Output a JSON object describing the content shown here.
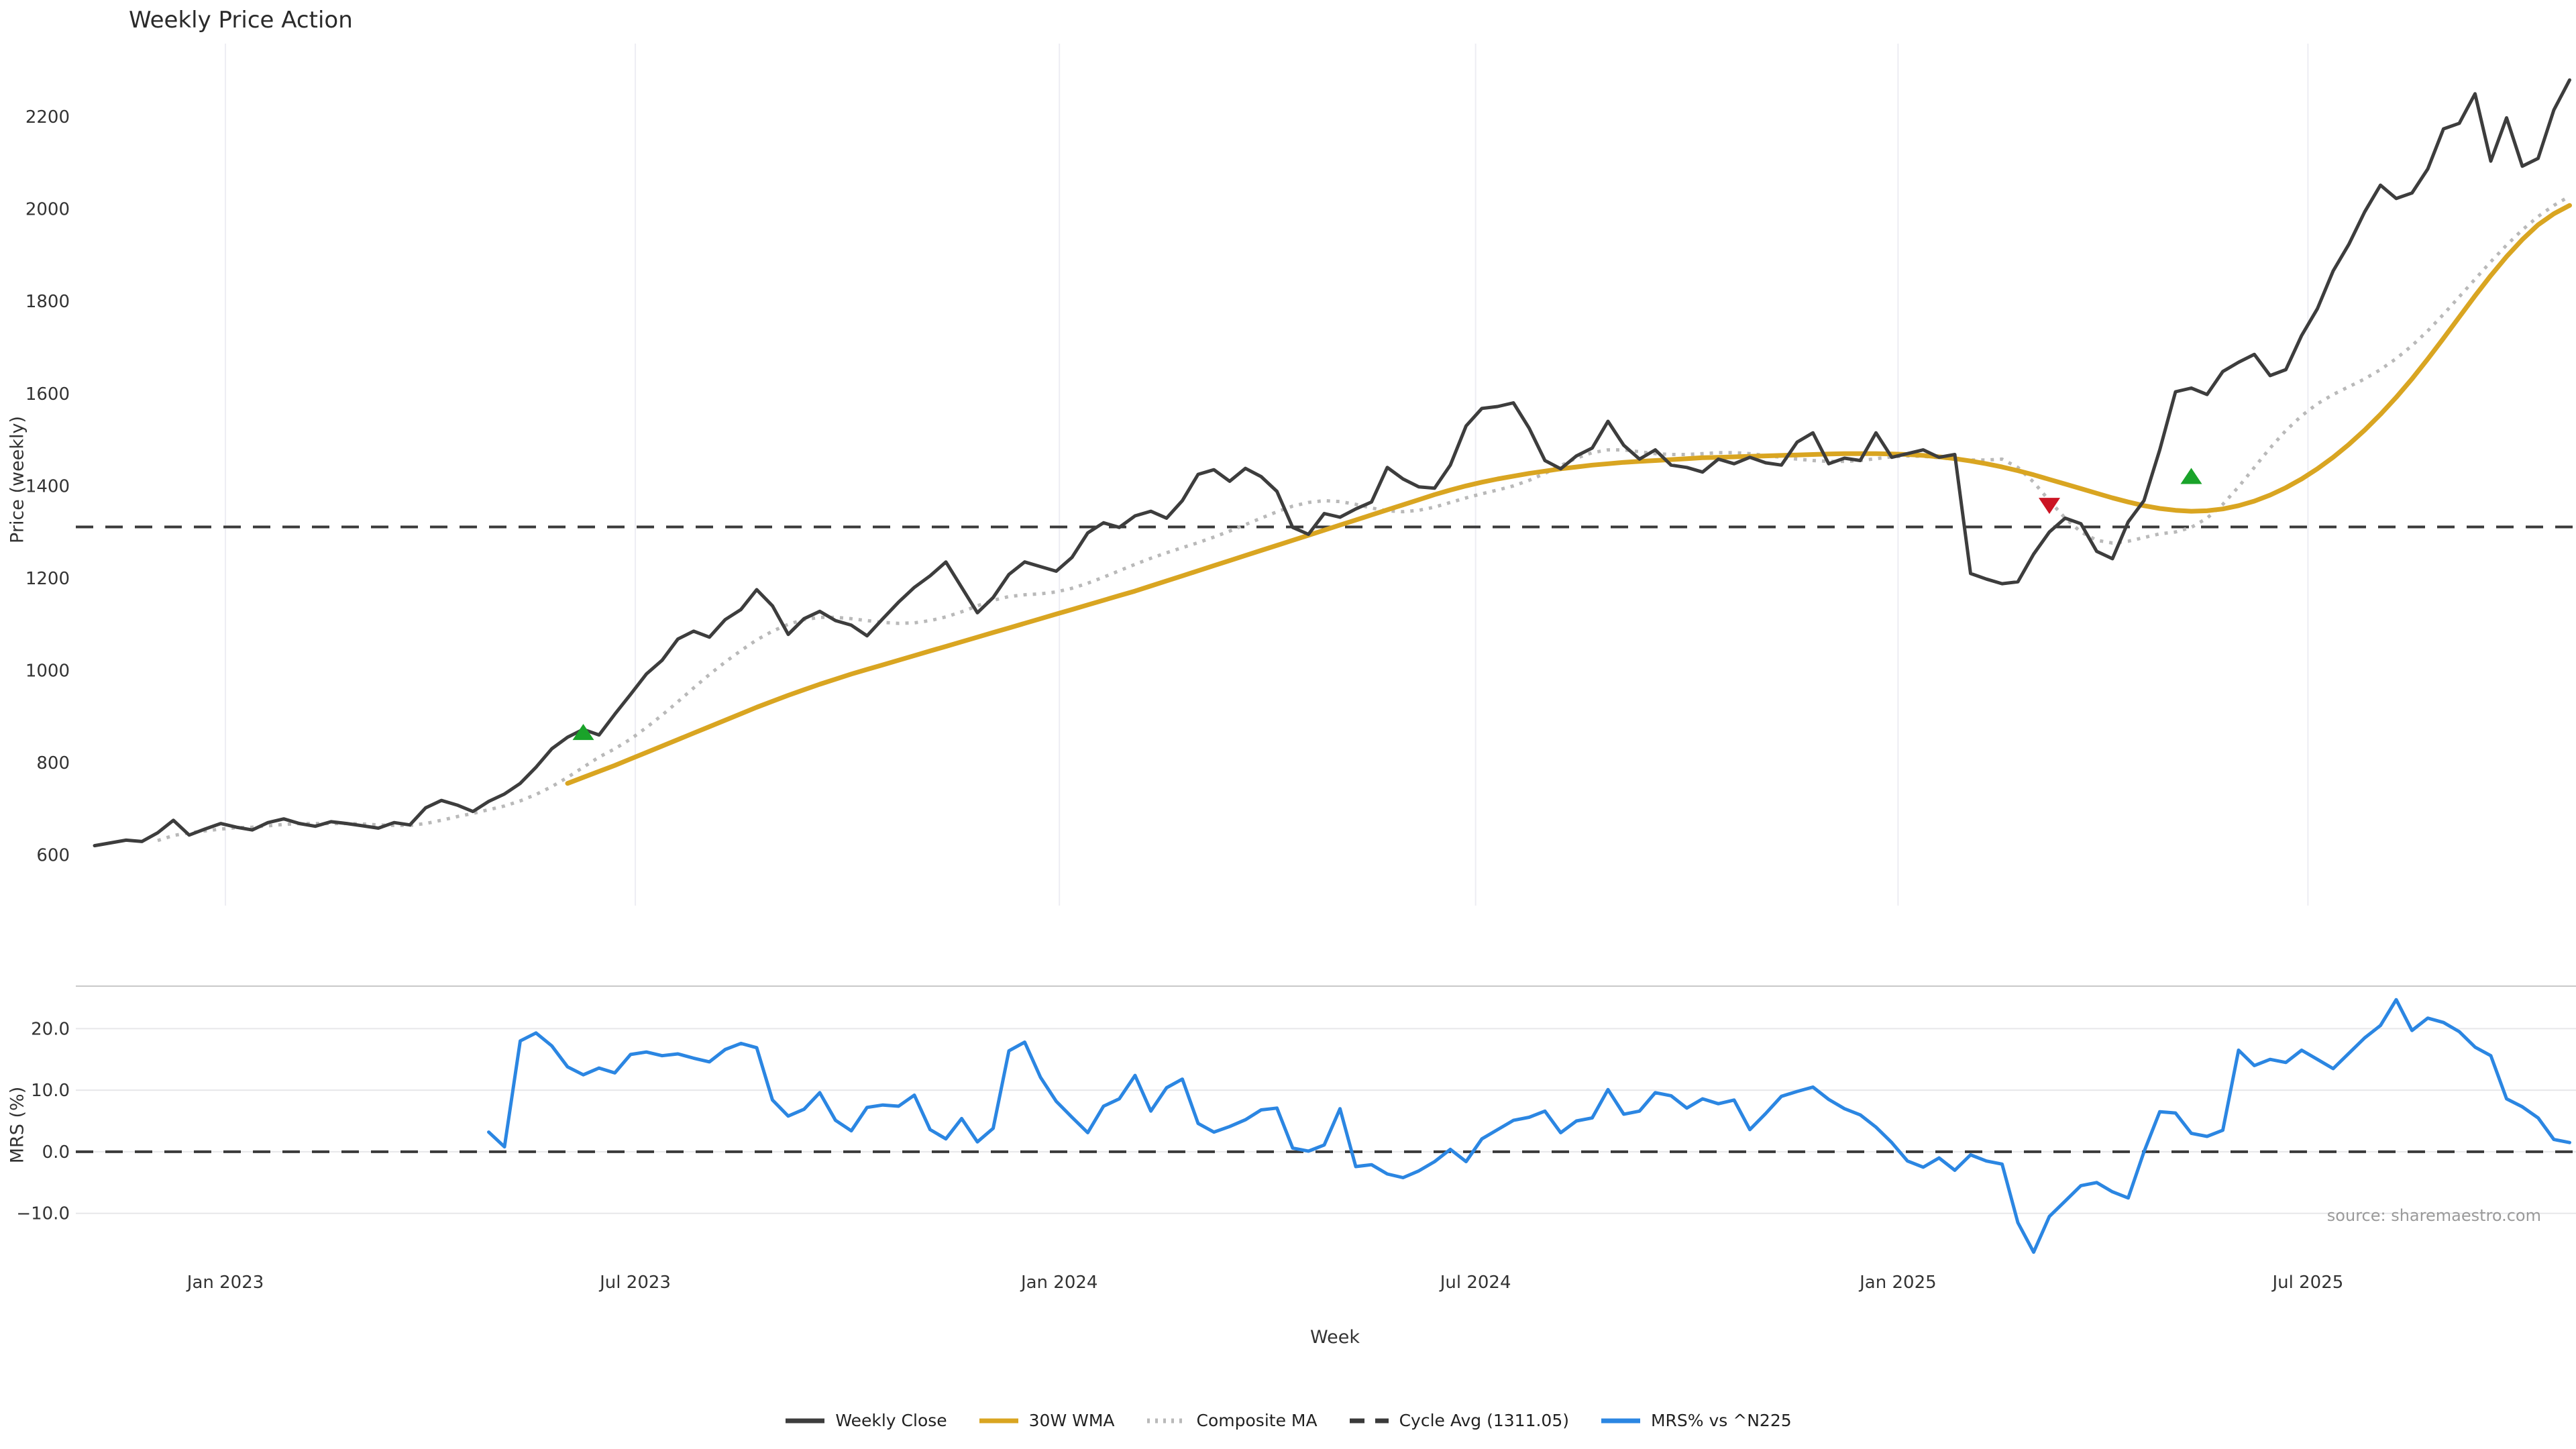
{
  "title": "Weekly Price Action",
  "source": "source: sharemaestro.com",
  "x_axis": {
    "label": "Week",
    "ticks": [
      {
        "label": "Jan 2023",
        "index": 8.3
      },
      {
        "label": "Jul 2023",
        "index": 34.3
      },
      {
        "label": "Jan 2024",
        "index": 61.2
      },
      {
        "label": "Jul 2024",
        "index": 87.6
      },
      {
        "label": "Jan 2025",
        "index": 114.4
      },
      {
        "label": "Jul 2025",
        "index": 140.4
      }
    ]
  },
  "price_panel": {
    "ylabel": "Price (weekly)",
    "ylim": [
      490,
      2337
    ],
    "yticks": [
      {
        "v": 600,
        "label": "600"
      },
      {
        "v": 800,
        "label": "800"
      },
      {
        "v": 1000,
        "label": "1000"
      },
      {
        "v": 1200,
        "label": "1200"
      },
      {
        "v": 1400,
        "label": "1400"
      },
      {
        "v": 1600,
        "label": "1600"
      },
      {
        "v": 1800,
        "label": "1800"
      },
      {
        "v": 2000,
        "label": "2000"
      },
      {
        "v": 2200,
        "label": "2200"
      }
    ]
  },
  "mrs_panel": {
    "ylabel": "MRS (%)",
    "ylim": [
      -18.2,
      26.9
    ],
    "yticks": [
      {
        "v": 20,
        "label": "20.0"
      },
      {
        "v": 10,
        "label": "10.0"
      },
      {
        "v": 0,
        "label": "0.0"
      },
      {
        "v": -10,
        "label": "−10.0"
      }
    ]
  },
  "legend": [
    {
      "label": "Weekly Close",
      "color": "#3d3d3d",
      "dash": ""
    },
    {
      "label": "30W WMA",
      "color": "#d9a521",
      "dash": ""
    },
    {
      "label": "Composite MA",
      "color": "#b9b9b9",
      "dash": "4 8"
    },
    {
      "label": "Cycle Avg (1311.05)",
      "color": "#3a3a3a",
      "dash": "22 16"
    },
    {
      "label": "MRS% vs ^N225",
      "color": "#2b86e2",
      "dash": ""
    }
  ],
  "chart_data": {
    "type": "line",
    "x_unit": "weeks (Nov 2022 - Oct 2025)",
    "n_points": 158,
    "grid": {
      "price_panel": "vertical-ticks",
      "mrs_panel": "horizontal-ticks"
    },
    "legend_position": "bottom-center",
    "hlines": [
      {
        "panel": "price",
        "value": 1311.05,
        "label": "Cycle Avg (1311.05)",
        "style": "dashed",
        "color": "#3a3a3a"
      },
      {
        "panel": "mrs",
        "value": 0,
        "style": "dashed",
        "color": "#3a3a3a"
      }
    ],
    "markers": [
      {
        "index": 31,
        "value": 865,
        "shape": "triangle-up",
        "color": "#1aa32a"
      },
      {
        "index": 124,
        "value": 1358,
        "shape": "triangle-down",
        "color": "#cb1423"
      },
      {
        "index": 133,
        "value": 1420,
        "shape": "triangle-up",
        "color": "#1aa32a"
      }
    ],
    "series": [
      {
        "name": "Weekly Close",
        "panel": "price",
        "color": "#3d3d3d",
        "width": 5,
        "dash": "",
        "start_index": 0,
        "values": [
          620,
          626,
          632,
          629,
          648,
          675,
          643,
          656,
          668,
          660,
          654,
          670,
          678,
          668,
          662,
          672,
          668,
          663,
          658,
          670,
          665,
          702,
          718,
          708,
          694,
          716,
          732,
          755,
          790,
          830,
          855,
          872,
          860,
          905,
          948,
          992,
          1022,
          1068,
          1085,
          1072,
          1110,
          1132,
          1175,
          1140,
          1078,
          1112,
          1128,
          1108,
          1098,
          1075,
          1112,
          1148,
          1180,
          1205,
          1235,
          1180,
          1125,
          1158,
          1208,
          1235,
          1225,
          1215,
          1245,
          1298,
          1320,
          1310,
          1335,
          1345,
          1330,
          1368,
          1425,
          1435,
          1410,
          1438,
          1420,
          1388,
          1310,
          1295,
          1340,
          1332,
          1350,
          1365,
          1440,
          1415,
          1398,
          1395,
          1445,
          1530,
          1568,
          1572,
          1580,
          1525,
          1455,
          1437,
          1465,
          1482,
          1540,
          1488,
          1458,
          1478,
          1445,
          1440,
          1430,
          1458,
          1448,
          1462,
          1450,
          1445,
          1495,
          1515,
          1448,
          1460,
          1455,
          1515,
          1462,
          1470,
          1478,
          1462,
          1468,
          1210,
          1198,
          1188,
          1192,
          1252,
          1300,
          1330,
          1318,
          1258,
          1242,
          1322,
          1368,
          1478,
          1604,
          1612,
          1598,
          1648,
          1668,
          1685,
          1639,
          1652,
          1726,
          1784,
          1866,
          1924,
          1994,
          2052,
          2023,
          2035,
          2087,
          2174,
          2186,
          2250,
          2104,
          2198,
          2093,
          2110,
          2215,
          2280
        ]
      },
      {
        "name": "30W WMA",
        "panel": "price",
        "color": "#d9a521",
        "width": 7,
        "dash": "",
        "start_index": 30,
        "values": [
          755,
          768,
          781,
          794,
          808,
          822,
          836,
          850,
          864,
          878,
          892,
          906,
          920,
          933,
          946,
          958,
          970,
          981,
          992,
          1002,
          1012,
          1022,
          1032,
          1042,
          1052,
          1062,
          1072,
          1082,
          1092,
          1102,
          1112,
          1122,
          1132,
          1142,
          1152,
          1162,
          1172,
          1183,
          1194,
          1205,
          1216,
          1227,
          1238,
          1249,
          1260,
          1271,
          1282,
          1293,
          1304,
          1315,
          1326,
          1337,
          1348,
          1359,
          1370,
          1381,
          1391,
          1400,
          1408,
          1415,
          1421,
          1427,
          1432,
          1437,
          1441,
          1445,
          1448,
          1451,
          1453,
          1455,
          1457,
          1459,
          1461,
          1462,
          1463,
          1464,
          1465,
          1466,
          1467,
          1468,
          1469,
          1470,
          1470,
          1470,
          1469,
          1468,
          1466,
          1463,
          1459,
          1454,
          1448,
          1441,
          1433,
          1424,
          1414,
          1404,
          1394,
          1384,
          1374,
          1365,
          1357,
          1351,
          1347,
          1345,
          1346,
          1350,
          1357,
          1367,
          1380,
          1396,
          1415,
          1437,
          1462,
          1490,
          1521,
          1555,
          1592,
          1632,
          1675,
          1720,
          1766,
          1812,
          1856,
          1897,
          1934,
          1966,
          1990,
          2008
        ]
      },
      {
        "name": "Composite MA",
        "panel": "price",
        "color": "#b9b9b9",
        "width": 5,
        "dash": "5 9",
        "start_index": 4,
        "values": [
          631,
          642,
          648,
          652,
          656,
          659,
          660,
          663,
          666,
          668,
          668,
          668,
          668,
          667,
          665,
          664,
          664,
          668,
          675,
          683,
          690,
          698,
          706,
          717,
          731,
          748,
          768,
          790,
          812,
          830,
          851,
          876,
          903,
          932,
          962,
          991,
          1018,
          1043,
          1066,
          1085,
          1100,
          1110,
          1115,
          1115,
          1112,
          1108,
          1104,
          1102,
          1103,
          1108,
          1116,
          1127,
          1140,
          1152,
          1160,
          1164,
          1166,
          1170,
          1178,
          1189,
          1202,
          1216,
          1230,
          1243,
          1255,
          1266,
          1277,
          1289,
          1302,
          1316,
          1330,
          1344,
          1356,
          1364,
          1368,
          1366,
          1360,
          1352,
          1346,
          1344,
          1347,
          1354,
          1364,
          1374,
          1383,
          1391,
          1400,
          1412,
          1427,
          1444,
          1460,
          1472,
          1478,
          1478,
          1474,
          1470,
          1468,
          1468,
          1470,
          1472,
          1472,
          1470,
          1466,
          1462,
          1458,
          1455,
          1453,
          1453,
          1455,
          1459,
          1463,
          1465,
          1464,
          1461,
          1458,
          1456,
          1456,
          1458,
          1440,
          1408,
          1368,
          1330,
          1300,
          1282,
          1276,
          1280,
          1288,
          1296,
          1300,
          1310,
          1330,
          1360,
          1398,
          1440,
          1482,
          1520,
          1552,
          1578,
          1598,
          1615,
          1632,
          1652,
          1676,
          1704,
          1736,
          1772,
          1810,
          1848,
          1886,
          1922,
          1955,
          1984,
          2008,
          2028
        ]
      },
      {
        "name": "MRS% vs ^N225",
        "panel": "mrs",
        "color": "#2b86e2",
        "width": 5,
        "dash": "",
        "start_index": 25,
        "values": [
          3.2,
          0.8,
          18.0,
          19.3,
          17.2,
          13.8,
          12.5,
          13.6,
          12.8,
          15.8,
          16.2,
          15.6,
          15.9,
          15.2,
          14.6,
          16.6,
          17.6,
          16.9,
          8.4,
          5.8,
          6.9,
          9.6,
          5.1,
          3.4,
          7.2,
          7.6,
          7.4,
          9.2,
          3.6,
          2.1,
          5.4,
          1.6,
          3.8,
          16.4,
          17.8,
          12.1,
          8.2,
          5.6,
          3.1,
          7.4,
          8.6,
          12.4,
          6.6,
          10.4,
          11.8,
          4.6,
          3.2,
          4.1,
          5.2,
          6.8,
          7.1,
          0.6,
          0.1,
          1.1,
          7.0,
          -2.4,
          -2.1,
          -3.6,
          -4.2,
          -3.1,
          -1.6,
          0.4,
          -1.6,
          2.1,
          3.6,
          5.1,
          5.6,
          6.6,
          3.1,
          5.0,
          5.5,
          10.1,
          6.1,
          6.6,
          9.6,
          9.1,
          7.1,
          8.6,
          7.8,
          8.4,
          3.6,
          6.2,
          9.0,
          9.8,
          10.5,
          8.5,
          7.0,
          6.0,
          4.0,
          1.5,
          -1.5,
          -2.5,
          -1.0,
          -3.0,
          -0.5,
          -1.5,
          -2.0,
          -11.5,
          -16.3,
          -10.5,
          -8.0,
          -5.5,
          -5.0,
          -6.5,
          -7.5,
          0.0,
          6.5,
          6.3,
          3.0,
          2.5,
          3.5,
          16.5,
          14.0,
          15.0,
          14.5,
          16.5,
          15.0,
          13.5,
          16.0,
          18.5,
          20.5,
          24.7,
          19.7,
          21.7,
          21.0,
          19.5,
          17.0,
          15.6,
          8.6,
          7.3,
          5.5,
          2.0,
          1.5
        ]
      }
    ]
  }
}
